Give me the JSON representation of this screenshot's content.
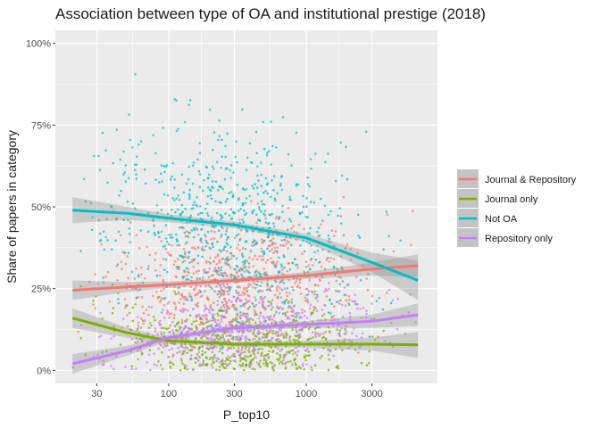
{
  "chart_data": {
    "type": "scatter",
    "title": "Association between type of OA and institutional prestige (2018)",
    "xlabel": "P_top10",
    "ylabel": "Share of papers in category",
    "x_scale": "log10",
    "xlim": [
      15,
      9000
    ],
    "ylim": [
      -0.04,
      1.04
    ],
    "x_ticks": [
      30,
      100,
      300,
      1000,
      3000
    ],
    "x_tick_labels": [
      "30",
      "100",
      "300",
      "1000",
      "3000"
    ],
    "y_ticks": [
      0,
      0.25,
      0.5,
      0.75,
      1.0
    ],
    "y_tick_labels": [
      "0%",
      "25%",
      "50%",
      "75%",
      "100%"
    ],
    "grid": true,
    "legend_position": "right",
    "background": "#ebebeb",
    "point_alpha": 0.7,
    "series": [
      {
        "name": "Journal & Repository",
        "color": "#f8766d",
        "trend": {
          "x": [
            20,
            50,
            100,
            300,
            1000,
            3000,
            6500
          ],
          "y": [
            0.245,
            0.255,
            0.262,
            0.275,
            0.29,
            0.31,
            0.32
          ]
        },
        "band_halfwidth": [
          0.03,
          0.015,
          0.01,
          0.008,
          0.01,
          0.02,
          0.035
        ],
        "scatter": {
          "count": 700,
          "xlog_mean": 2.5,
          "xlog_sd": 0.45,
          "y_sd": 0.09,
          "y_min": 0.0,
          "y_max": 0.8
        }
      },
      {
        "name": "Journal only",
        "color": "#7cae00",
        "trend": {
          "x": [
            20,
            50,
            100,
            300,
            1000,
            3000,
            6500
          ],
          "y": [
            0.16,
            0.115,
            0.09,
            0.08,
            0.08,
            0.08,
            0.078
          ]
        },
        "band_halfwidth": [
          0.03,
          0.015,
          0.01,
          0.008,
          0.01,
          0.02,
          0.04
        ],
        "scatter": {
          "count": 650,
          "xlog_mean": 2.5,
          "xlog_sd": 0.45,
          "y_sd": 0.06,
          "y_min": 0.0,
          "y_max": 0.6
        }
      },
      {
        "name": "Not OA",
        "color": "#00bfc4",
        "trend": {
          "x": [
            20,
            50,
            100,
            300,
            1000,
            3000,
            6500
          ],
          "y": [
            0.49,
            0.48,
            0.465,
            0.445,
            0.405,
            0.33,
            0.275
          ]
        },
        "band_halfwidth": [
          0.04,
          0.02,
          0.012,
          0.01,
          0.012,
          0.03,
          0.06
        ],
        "scatter": {
          "count": 750,
          "xlog_mean": 2.45,
          "xlog_sd": 0.45,
          "y_sd": 0.14,
          "y_min": 0.05,
          "y_max": 1.0
        }
      },
      {
        "name": "Repository only",
        "color": "#c77cff",
        "trend": {
          "x": [
            20,
            50,
            100,
            300,
            1000,
            3000,
            6500
          ],
          "y": [
            0.02,
            0.06,
            0.1,
            0.13,
            0.14,
            0.15,
            0.17
          ]
        },
        "band_halfwidth": [
          0.03,
          0.015,
          0.01,
          0.008,
          0.01,
          0.02,
          0.035
        ],
        "scatter": {
          "count": 550,
          "xlog_mean": 2.5,
          "xlog_sd": 0.45,
          "y_sd": 0.06,
          "y_min": 0.0,
          "y_max": 0.6
        }
      }
    ]
  }
}
